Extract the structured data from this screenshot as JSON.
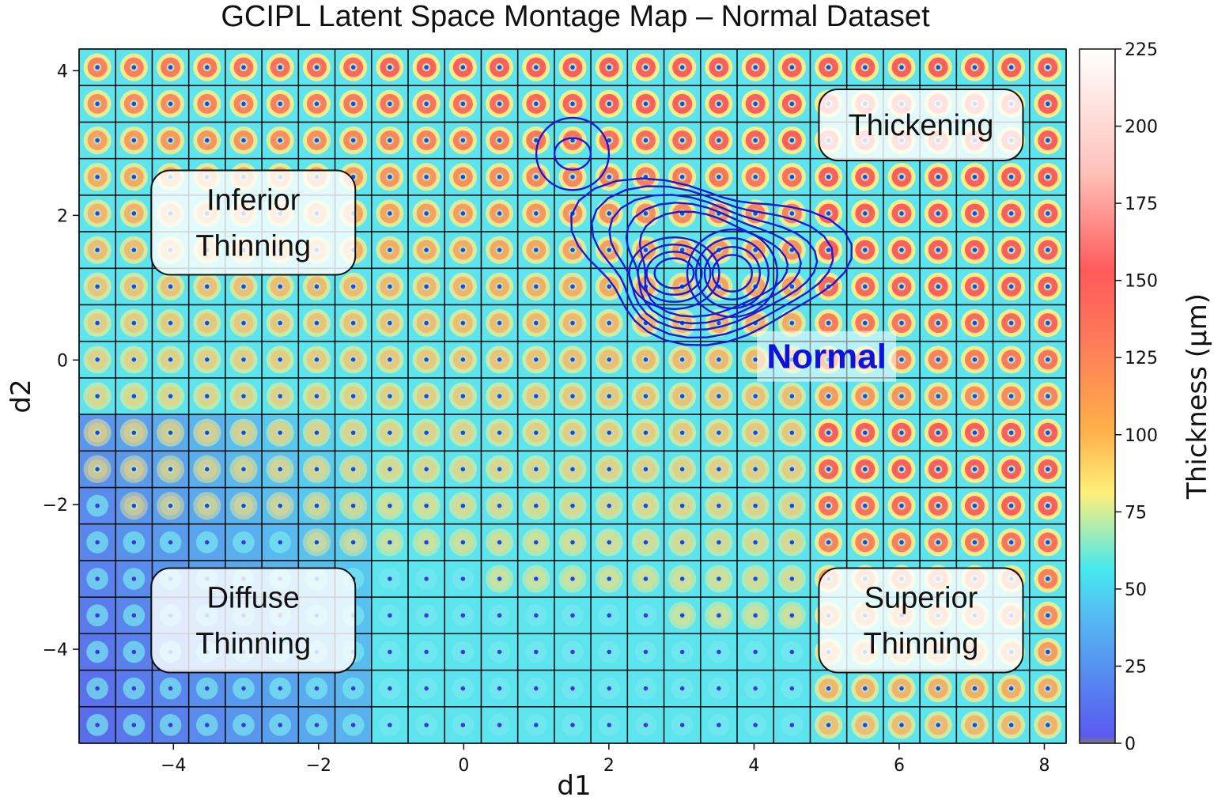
{
  "chart_data": {
    "type": "heatmap",
    "title": "GCIPL Latent Space Montage Map – Normal Dataset",
    "xlabel": "d1",
    "ylabel": "d2",
    "xlim": [
      -5.3,
      8.3
    ],
    "ylim": [
      -5.3,
      4.3
    ],
    "grid": {
      "columns": 27,
      "rows": 19
    },
    "x_ticks": [
      -4,
      -2,
      0,
      2,
      4,
      6,
      8
    ],
    "x_tick_labels": [
      "−4",
      "−2",
      "0",
      "2",
      "4",
      "6",
      "8"
    ],
    "y_ticks": [
      4,
      2,
      0,
      -2,
      -4
    ],
    "y_tick_labels": [
      "4",
      "2",
      "0",
      "−2",
      "−4"
    ],
    "colorbar": {
      "label": "Thickness (μm)",
      "range": [
        0,
        225
      ],
      "ticks": [
        225,
        200,
        175,
        150,
        125,
        100,
        75,
        50,
        25,
        0
      ],
      "tick_labels": [
        "225",
        "200",
        "175",
        "150",
        "125",
        "100",
        "75",
        "50",
        "25",
        "0"
      ],
      "colormap": "jet"
    },
    "regions": [
      {
        "lines": [
          "Inferior",
          "Thinning"
        ],
        "x": -2.9,
        "y": 1.9
      },
      {
        "lines": [
          "Thickening"
        ],
        "x": 6.3,
        "y": 3.25
      },
      {
        "lines": [
          "Diffuse",
          "Thinning"
        ],
        "x": -2.9,
        "y": -3.6
      },
      {
        "lines": [
          "Superior",
          "Thinning"
        ],
        "x": 6.3,
        "y": -3.6
      }
    ],
    "density_label": {
      "text": "Normal",
      "x": 5.0,
      "y": 0.05,
      "color": "#0d14d8"
    },
    "density_contours": {
      "color": "#1a1ad8",
      "peaks": [
        [
          3.7,
          1.2
        ],
        [
          2.9,
          1.2
        ],
        [
          1.5,
          2.85
        ]
      ]
    }
  }
}
